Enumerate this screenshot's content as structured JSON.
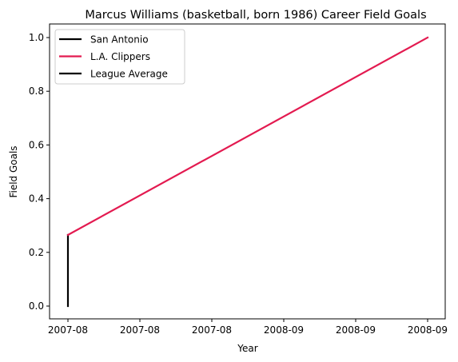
{
  "chart_data": {
    "type": "line",
    "title": "Marcus Williams (basketball, born 1986) Career Field Goals",
    "xlabel": "Year",
    "ylabel": "Field Goals",
    "x_tick_labels": [
      "2007-08",
      "2007-08",
      "2007-08",
      "2008-09",
      "2008-09",
      "2008-09"
    ],
    "y_tick_labels": [
      "0.0",
      "0.2",
      "0.4",
      "0.6",
      "0.8",
      "1.0"
    ],
    "xlim": [
      0,
      1
    ],
    "ylim": [
      0,
      1
    ],
    "grid": false,
    "legend_position": "top-left",
    "series": [
      {
        "name": "San Antonio",
        "color": "#000000",
        "points": [
          [
            0,
            0.0
          ],
          [
            0,
            0.265
          ]
        ]
      },
      {
        "name": "L.A. Clippers",
        "color": "#e31a50",
        "points": [
          [
            0,
            0.265
          ],
          [
            1,
            1.0
          ]
        ]
      },
      {
        "name": "League Average",
        "color": "#000000",
        "points": []
      }
    ]
  }
}
